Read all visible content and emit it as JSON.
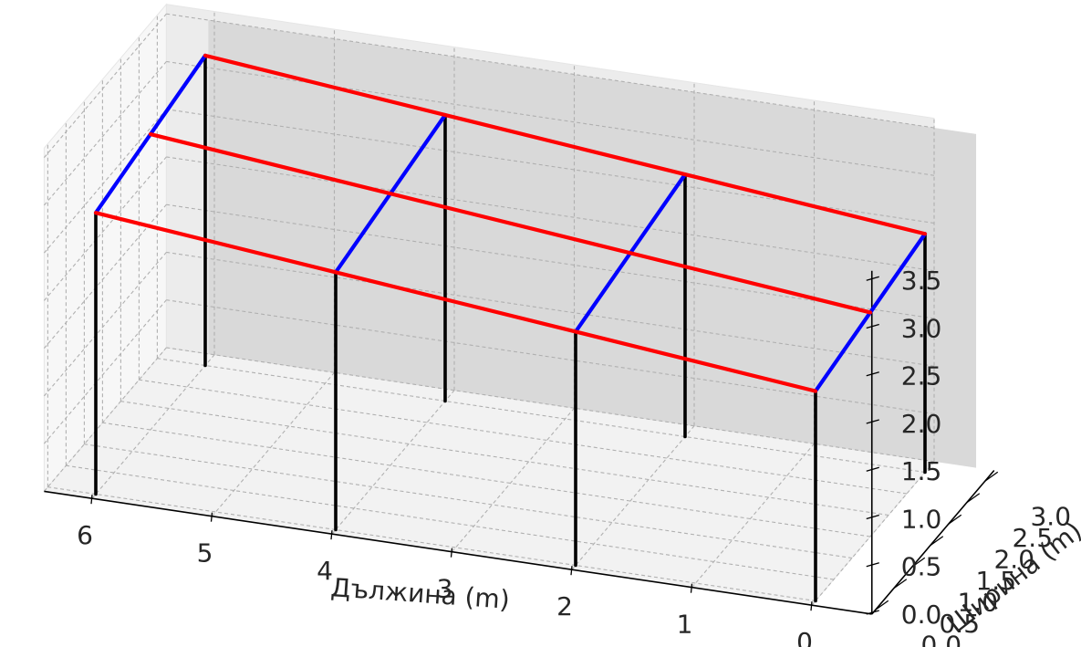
{
  "chart_data": {
    "type": "3d-line",
    "title": "",
    "xlabel": "Дължина (m)",
    "ylabel": "Ширина (m)",
    "zlabel": "",
    "x_ticks": [
      "0",
      "1",
      "2",
      "3",
      "4",
      "5",
      "6"
    ],
    "y_ticks": [
      "0.0",
      "0.5",
      "1.0",
      "1.5",
      "2.0",
      "2.5",
      "3.0"
    ],
    "z_ticks": [
      "0.0",
      "0.5",
      "1.0",
      "1.5",
      "2.0",
      "2.5",
      "3.0",
      "3.5"
    ],
    "xlim": [
      0,
      6.4
    ],
    "ylim": [
      0,
      3.0
    ],
    "zlim": [
      0,
      3.6
    ],
    "grid": true,
    "colors": {
      "posts": "#000000",
      "rafters": "#0000ff",
      "purlins": "#ff0000"
    },
    "series": [
      {
        "color": "posts",
        "segments": [
          [
            [
              0,
              0,
              0
            ],
            [
              0,
              0,
              2.2
            ]
          ],
          [
            [
              2,
              0,
              0
            ],
            [
              2,
              0,
              2.45
            ]
          ],
          [
            [
              4,
              0,
              0
            ],
            [
              4,
              0,
              2.7
            ]
          ],
          [
            [
              6,
              0,
              0
            ],
            [
              6,
              0,
              2.95
            ]
          ],
          [
            [
              0,
              3,
              0
            ],
            [
              0,
              3,
              2.5
            ]
          ],
          [
            [
              2,
              3,
              0
            ],
            [
              2,
              3,
              2.75
            ]
          ],
          [
            [
              4,
              3,
              0
            ],
            [
              4,
              3,
              3.0
            ]
          ],
          [
            [
              6,
              3,
              0
            ],
            [
              6,
              3,
              3.25
            ]
          ]
        ]
      },
      {
        "color": "rafters",
        "segments": [
          [
            [
              0,
              0,
              2.2
            ],
            [
              0,
              3,
              2.5
            ]
          ],
          [
            [
              2,
              0,
              2.45
            ],
            [
              2,
              3,
              2.75
            ]
          ],
          [
            [
              4,
              0,
              2.7
            ],
            [
              4,
              3,
              3.0
            ]
          ],
          [
            [
              6,
              0,
              2.95
            ],
            [
              6,
              3,
              3.25
            ]
          ]
        ]
      },
      {
        "color": "purlins",
        "segments": [
          [
            [
              0,
              0,
              2.2
            ],
            [
              6,
              0,
              2.95
            ]
          ],
          [
            [
              0,
              1.5,
              2.35
            ],
            [
              6,
              1.5,
              3.1
            ]
          ],
          [
            [
              0,
              3,
              2.5
            ],
            [
              6,
              3,
              3.25
            ]
          ]
        ]
      }
    ]
  }
}
